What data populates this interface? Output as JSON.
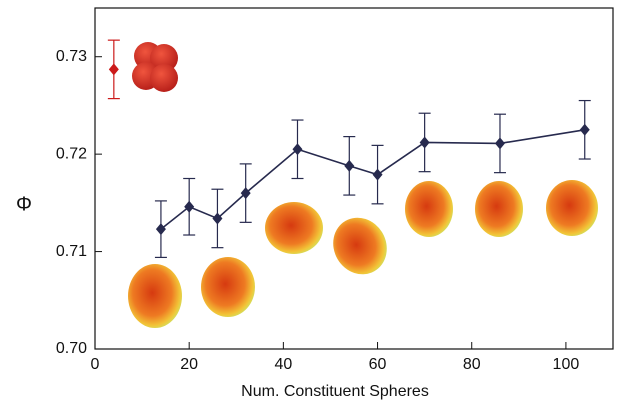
{
  "chart_data": {
    "type": "line",
    "xlabel": "Num. Constituent Spheres",
    "ylabel": "Φ",
    "xlim": [
      0,
      110
    ],
    "ylim": [
      0.7,
      0.735
    ],
    "xticks": [
      0,
      20,
      40,
      60,
      80,
      100
    ],
    "yticks": [
      {
        "value": 0.7,
        "label": "0.70"
      },
      0.71,
      0.72,
      0.73
    ],
    "series": [
      {
        "color": "#272a4e",
        "line": true,
        "x": [
          14,
          20,
          26,
          32,
          43,
          54,
          60,
          70,
          86,
          104
        ],
        "values": [
          0.7123,
          0.7146,
          0.7134,
          0.716,
          0.7205,
          0.7188,
          0.7179,
          0.7212,
          0.7211,
          0.7225
        ],
        "errors": [
          0.0029,
          0.0029,
          0.003,
          0.003,
          0.003,
          0.003,
          0.003,
          0.003,
          0.003,
          0.003
        ]
      },
      {
        "color": "#cc1a1a",
        "line": false,
        "x": [
          4
        ],
        "values": [
          0.7287
        ],
        "errors": [
          0.003
        ]
      }
    ]
  }
}
